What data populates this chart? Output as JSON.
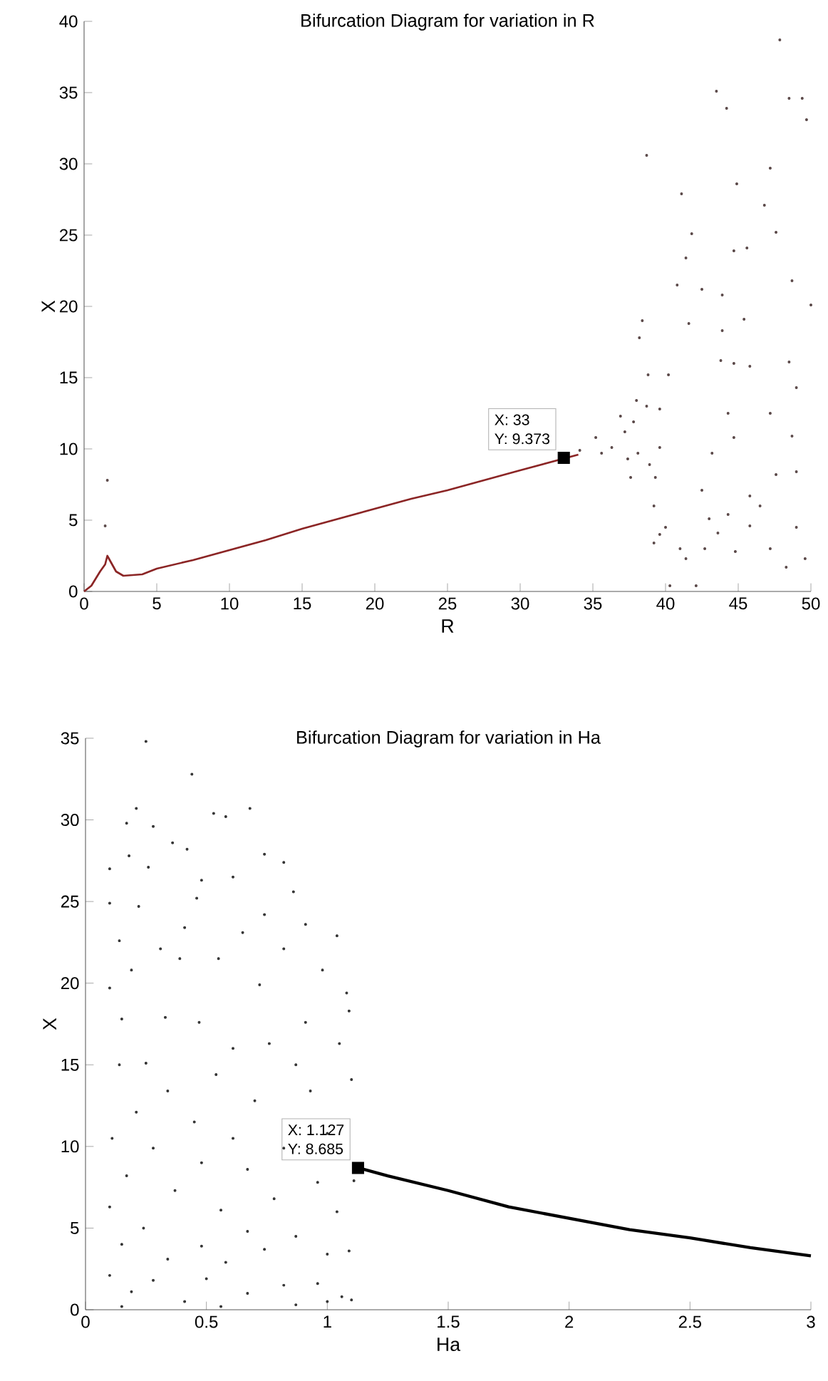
{
  "chart_data": [
    {
      "type": "scatter",
      "title": "Bifurcation Diagram for variation in R",
      "xlabel": "R",
      "ylabel": "X",
      "xlim": [
        0,
        50
      ],
      "ylim": [
        0,
        40
      ],
      "xticks": [
        0,
        5,
        10,
        15,
        20,
        25,
        30,
        35,
        40,
        45,
        50
      ],
      "yticks": [
        0,
        5,
        10,
        15,
        20,
        25,
        30,
        35,
        40
      ],
      "annotations": [
        "X: 33",
        "Y: 9.373"
      ],
      "series": [
        {
          "type": "line",
          "color": "#8b2525",
          "x": [
            0,
            0.5,
            1.1,
            1.45,
            1.6,
            2.2,
            2.7,
            4.0,
            5,
            7.5,
            10,
            12.5,
            15,
            17.5,
            20,
            22.5,
            25,
            27.5,
            30,
            34
          ],
          "values": [
            0,
            0.4,
            1.4,
            1.9,
            2.5,
            1.4,
            1.1,
            1.2,
            1.6,
            2.2,
            2.9,
            3.6,
            4.4,
            5.1,
            5.8,
            6.5,
            7.1,
            7.8,
            8.5,
            9.6
          ]
        },
        {
          "type": "scatter",
          "marker": "square",
          "color": "#000000",
          "x": [
            33
          ],
          "values": [
            9.373
          ]
        },
        {
          "type": "scatter",
          "color": "#5a4848",
          "x": [
            1.6,
            1.45,
            35.2,
            36.3,
            37.2,
            37.8,
            38.1,
            38.9,
            39.6,
            37.6,
            39.3,
            36.9,
            34.1,
            35.6,
            38.7,
            37.4,
            47.86,
            43.5,
            44.2,
            48.5,
            49.4,
            49.7,
            38.7,
            47.2,
            44.9,
            46.8,
            41.1,
            41.8,
            47.6,
            44.7,
            45.6,
            41.4,
            40.8,
            42.5,
            48.7,
            50.0,
            43.9,
            38.4,
            45.4,
            41.6,
            38.2,
            43.9,
            43.8,
            44.7,
            45.8,
            48.5,
            38.8,
            40.2,
            49.0,
            38.0,
            39.6,
            44.3,
            47.2,
            48.7,
            44.7,
            43.2,
            49.0,
            39.2,
            40.0,
            39.2,
            41.0,
            40.3,
            41.4,
            42.1,
            42.7,
            43.0,
            44.3,
            44.8,
            45.8,
            46.5,
            47.2,
            48.3,
            49.0,
            49.6,
            47.6,
            45.8,
            43.6,
            42.5,
            39.6
          ],
          "values": [
            7.8,
            4.6,
            10.8,
            10.1,
            11.2,
            11.9,
            9.7,
            8.9,
            10.1,
            8.0,
            8.0,
            12.3,
            9.9,
            9.7,
            13.0,
            9.3,
            38.7,
            35.1,
            33.9,
            34.6,
            34.6,
            33.1,
            30.6,
            29.7,
            28.6,
            27.1,
            27.9,
            25.1,
            25.2,
            23.9,
            24.1,
            23.4,
            21.5,
            21.2,
            21.8,
            20.1,
            20.8,
            19.0,
            19.1,
            18.8,
            17.8,
            18.3,
            16.2,
            16.0,
            15.8,
            16.1,
            15.2,
            15.2,
            14.3,
            13.4,
            12.8,
            12.5,
            12.5,
            10.9,
            10.8,
            9.7,
            8.4,
            6.0,
            4.5,
            3.4,
            3.0,
            0.4,
            2.3,
            0.4,
            3.0,
            5.1,
            5.4,
            2.8,
            4.6,
            6.0,
            3.0,
            1.7,
            4.5,
            2.3,
            8.2,
            6.7,
            4.1,
            7.1,
            4.0
          ]
        }
      ]
    },
    {
      "type": "scatter",
      "title": "Bifurcation Diagram for variation in Ha",
      "xlabel": "Ha",
      "ylabel": "X",
      "xlim": [
        0,
        3
      ],
      "ylim": [
        0,
        35
      ],
      "xticks": [
        0,
        0.5,
        1,
        1.5,
        2,
        2.5,
        3
      ],
      "yticks": [
        0,
        5,
        10,
        15,
        20,
        25,
        30,
        35
      ],
      "annotations": [
        "X: 1.127",
        "Y: 8.685"
      ],
      "series": [
        {
          "type": "line",
          "color": "#000000",
          "x": [
            1.127,
            1.25,
            1.5,
            1.75,
            2,
            2.25,
            2.5,
            2.75,
            3
          ],
          "values": [
            8.7,
            8.2,
            7.3,
            6.3,
            5.6,
            4.9,
            4.4,
            3.8,
            3.3
          ]
        },
        {
          "type": "scatter",
          "marker": "square",
          "color": "#000000",
          "x": [
            1.127
          ],
          "values": [
            8.685
          ]
        },
        {
          "type": "scatter",
          "color": "#333333",
          "x": [
            0.25,
            0.44,
            0.21,
            0.17,
            0.28,
            0.53,
            0.58,
            0.68,
            0.36,
            0.42,
            0.18,
            0.74,
            0.82,
            0.1,
            0.26,
            0.48,
            0.61,
            0.86,
            0.1,
            0.22,
            0.46,
            0.74,
            0.41,
            0.65,
            0.91,
            1.04,
            0.14,
            0.31,
            0.55,
            0.82,
            0.98,
            0.1,
            0.19,
            0.39,
            0.72,
            1.08,
            0.15,
            0.33,
            0.47,
            0.91,
            1.09,
            0.61,
            0.76,
            1.05,
            0.14,
            0.25,
            0.54,
            0.87,
            1.1,
            0.34,
            0.7,
            0.93,
            0.21,
            0.45,
            1.0,
            0.11,
            0.61,
            0.28,
            0.82,
            0.48,
            0.17,
            0.67,
            0.96,
            1.11,
            0.37,
            0.78,
            0.1,
            0.56,
            1.04,
            0.24,
            0.67,
            0.87,
            0.15,
            0.48,
            0.74,
            1.0,
            0.34,
            0.58,
            1.09,
            0.1,
            0.28,
            0.5,
            0.82,
            0.96,
            0.19,
            0.67,
            1.06,
            0.41,
            0.87,
            0.15,
            0.56,
            1.0,
            1.1
          ],
          "values": [
            34.8,
            32.8,
            30.7,
            29.8,
            29.6,
            30.4,
            30.2,
            30.7,
            28.6,
            28.2,
            27.8,
            27.9,
            27.4,
            27.0,
            27.1,
            26.3,
            26.5,
            25.6,
            24.9,
            24.7,
            25.2,
            24.2,
            23.4,
            23.1,
            23.6,
            22.9,
            22.6,
            22.1,
            21.5,
            22.1,
            20.8,
            19.7,
            20.8,
            21.5,
            19.9,
            19.4,
            17.8,
            17.9,
            17.6,
            17.6,
            18.3,
            16.0,
            16.3,
            16.3,
            15.0,
            15.1,
            14.4,
            15.0,
            14.1,
            13.4,
            12.8,
            13.4,
            12.1,
            11.5,
            10.8,
            10.5,
            10.5,
            9.9,
            9.9,
            9.0,
            8.2,
            8.6,
            7.8,
            7.9,
            7.3,
            6.8,
            6.3,
            6.1,
            6.0,
            5.0,
            4.8,
            4.5,
            4.0,
            3.9,
            3.7,
            3.4,
            3.1,
            2.9,
            3.6,
            2.1,
            1.8,
            1.9,
            1.5,
            1.6,
            1.1,
            1.0,
            0.8,
            0.5,
            0.3,
            0.2,
            0.2,
            0.5,
            0.6
          ]
        }
      ]
    }
  ]
}
